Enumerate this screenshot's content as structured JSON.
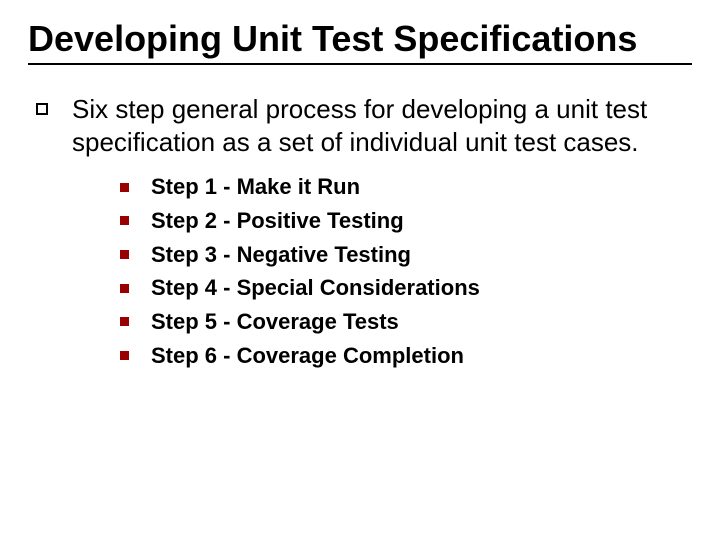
{
  "slide": {
    "title": "Developing Unit Test Specifications",
    "title_fontsize": 36,
    "title_color": "#000000",
    "underline_color": "#000000",
    "background_color": "#ffffff",
    "body": {
      "bullet1": {
        "marker_type": "outline-square",
        "marker_color": "#000000",
        "text": "Six step general process for developing a unit test specification as a set of individual unit test cases.",
        "fontsize": 26,
        "color": "#000000",
        "weight": 400
      },
      "sublist": {
        "marker_type": "solid-square",
        "marker_color": "#990000",
        "fontsize": 22,
        "color": "#000000",
        "weight": 700,
        "items": [
          "Step 1 - Make it Run",
          "Step 2 - Positive Testing",
          "Step 3 - Negative Testing",
          "Step 4 - Special Considerations",
          "Step 5 - Coverage Tests",
          "Step 6 - Coverage Completion"
        ]
      }
    }
  }
}
